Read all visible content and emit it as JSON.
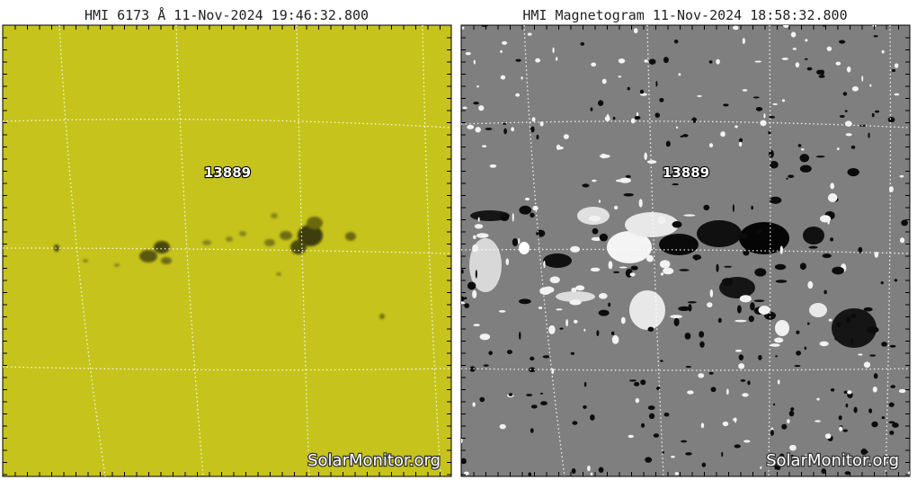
{
  "panels": [
    {
      "title": "HMI 6173 Å 11-Nov-2024 19:46:32.800",
      "region_label": "13889",
      "watermark": "SolarMonitor.org"
    },
    {
      "title": "HMI Magnetogram 11-Nov-2024 18:58:32.800",
      "region_label": "13889",
      "watermark": "SolarMonitor.org"
    }
  ]
}
